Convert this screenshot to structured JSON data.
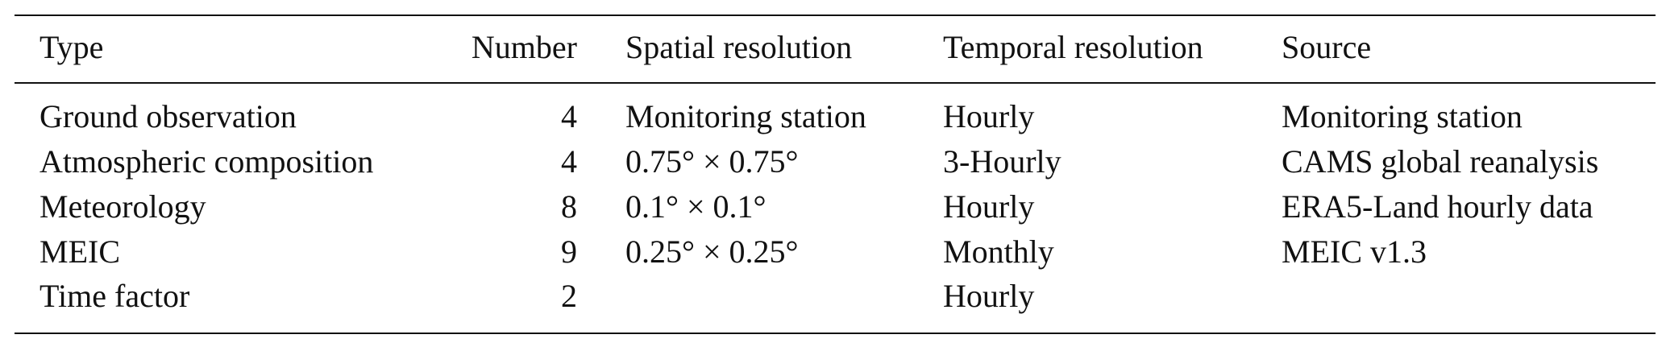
{
  "table": {
    "header": [
      "Type",
      "Number",
      "Spatial resolution",
      "Temporal resolution",
      "Source"
    ],
    "rows": [
      [
        "Ground observation",
        4,
        "Monitoring station",
        "Hourly",
        "Monitoring station"
      ],
      [
        "Atmospheric composition",
        4,
        "0.75° × 0.75°",
        "3-Hourly",
        "CAMS global reanalysis"
      ],
      [
        "Meteorology",
        8,
        "0.1° × 0.1°",
        "Hourly",
        "ERA5-Land hourly data"
      ],
      [
        "MEIC",
        9,
        "0.25° × 0.25°",
        "Monthly",
        "MEIC v1.3"
      ],
      [
        "Time factor",
        2,
        null,
        "Hourly",
        null
      ]
    ]
  }
}
